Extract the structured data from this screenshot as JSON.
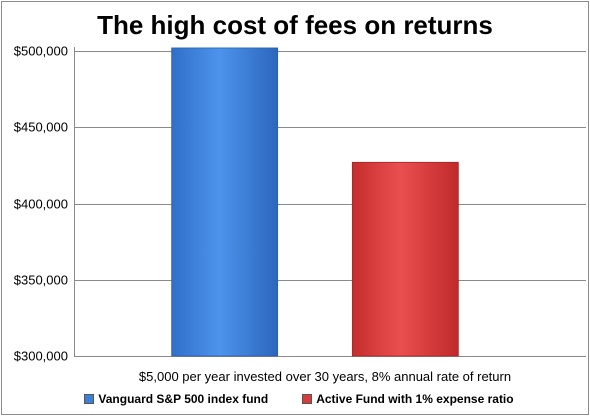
{
  "chart_data": {
    "type": "bar",
    "title": "The high cost of fees on returns",
    "xlabel": "$5,000 per year invested over 30 years, 8% annual rate of return",
    "ylabel": "",
    "ylim": [
      300000,
      500000
    ],
    "yticks": [
      300000,
      350000,
      400000,
      450000,
      500000
    ],
    "ytick_labels": [
      "$300,000",
      "$350,000",
      "$400,000",
      "$450,000",
      "$500,000"
    ],
    "grid": true,
    "legend_position": "bottom",
    "series": [
      {
        "name": "Vanguard S&P 500 index fund",
        "values": [
          502000
        ],
        "color": "#3d7fd8"
      },
      {
        "name": "Active Fund with 1% expense ratio",
        "values": [
          427000
        ],
        "color": "#d93b3b"
      }
    ]
  }
}
